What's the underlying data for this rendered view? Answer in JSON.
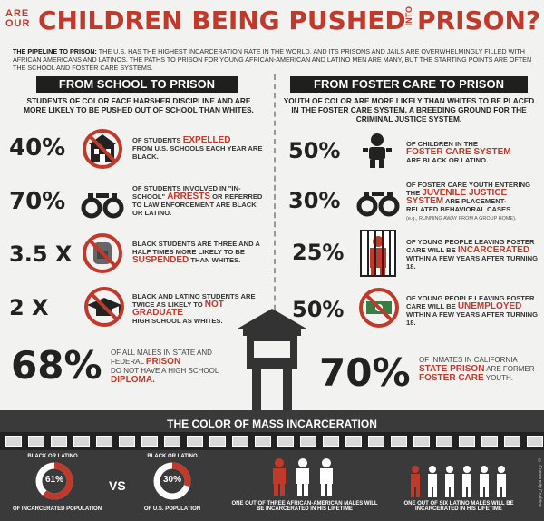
{
  "header": {
    "are_our": "ARE OUR",
    "title": "CHILDREN BEING PUSHED",
    "into": "INTO",
    "prison": "PRISON?"
  },
  "intro": {
    "lead": "THE PIPELINE TO PRISON:",
    "text": " THE U.S. HAS THE HIGHEST INCARCERATION RATE IN THE WORLD, AND ITS PRISONS AND JAILS ARE OVERWHELMINGLY FILLED WITH AFRICAN AMERICANS AND LATINOS. THE PATHS TO PRISON FOR YOUNG AFRICAN-AMERICAN AND LATINO MEN ARE MANY, BUT THE STARTING POINTS ARE OFTEN THE SCHOOL AND FOSTER CARE SYSTEMS."
  },
  "school": {
    "heading": "FROM SCHOOL TO PRISON",
    "sub": "STUDENTS OF COLOR FACE HARSHER DISCIPLINE AND ARE MORE LIKELY TO BE PUSHED OUT OF SCHOOL THAN WHITES.",
    "stats": [
      {
        "value": "40%",
        "pre": "OF STUDENTS ",
        "hl": "EXPELLED",
        "post": "FROM U.S. SCHOOLS EACH YEAR ARE BLACK.",
        "icon": "expelled-school-icon"
      },
      {
        "value": "70%",
        "pre": "OF STUDENTS INVOLVED IN \"IN-SCHOOL\" ",
        "hl": "ARRESTS",
        "post": "OR REFERRED TO LAW ENFORCEMENT ARE BLACK OR LATINO.",
        "icon": "handcuffs-icon"
      },
      {
        "value": "3.5 X",
        "pre": "BLACK STUDENTS ARE THREE AND A HALF TIMES MORE LIKELY TO BE ",
        "hl": "SUSPENDED",
        "post": "THAN WHITES.",
        "icon": "no-backpack-icon"
      },
      {
        "value": "2 X",
        "pre": "BLACK AND LATINO STUDENTS ARE TWICE AS LIKELY TO ",
        "hl": "NOT GRADUATE",
        "post": "HIGH SCHOOL AS WHITES.",
        "icon": "no-graduation-cap-icon"
      }
    ],
    "big_value": "68%",
    "big_pre": "OF ALL MALES IN STATE AND FEDERAL ",
    "big_hl1": "PRISON",
    "big_mid": "DO NOT HAVE A HIGH SCHOOL",
    "big_hl2": "DIPLOMA."
  },
  "foster": {
    "heading": "FROM FOSTER CARE TO PRISON",
    "sub": "YOUTH OF COLOR ARE MORE LIKELY THAN WHITES TO BE PLACED IN THE FOSTER CARE SYSTEM, A BREEDING GROUND FOR THE CRIMINAL JUSTICE SYSTEM.",
    "stats": [
      {
        "value": "50%",
        "pre": "OF CHILDREN IN THE ",
        "hl": "FOSTER CARE SYSTEM",
        "post": "ARE BLACK OR LATINO.",
        "note": "",
        "icon": "baby-icon"
      },
      {
        "value": "30%",
        "pre": "OF FOSTER CARE YOUTH ENTERING THE ",
        "hl": "JUVENILE JUSTICE SYSTEM",
        "post": "ARE PLACEMENT-RELATED BEHAVIORAL CASES",
        "note": "(e.g., RUNNING AWAY FROM A GROUP HOME).",
        "icon": "handcuffs-icon"
      },
      {
        "value": "25%",
        "pre": "OF YOUNG PEOPLE LEAVING FOSTER CARE WILL BE ",
        "hl": "INCARCERATED",
        "post": "WITHIN A FEW YEARS AFTER TURNING 18.",
        "note": "",
        "icon": "prisoner-bars-icon"
      },
      {
        "value": "50%",
        "pre": "OF YOUNG PEOPLE LEAVING FOSTER CARE WILL BE ",
        "hl": "UNEMPLOYED",
        "post": "WITHIN A FEW YEARS AFTER TURNING 18.",
        "note": "",
        "icon": "no-money-icon"
      }
    ],
    "big_value": "70%",
    "big_pre": "OF INMATES IN CALIFORNIA",
    "big_hl1": "STATE PRISON",
    "big_mid": "ARE FORMER",
    "big_hl2": "FOSTER CARE",
    "big_post": "YOUTH."
  },
  "bottom": {
    "title": "THE COLOR OF MASS INCARCERATION",
    "donut1": {
      "label_top": "BLACK OR LATINO",
      "value": "61%",
      "pct": 61,
      "label_bottom": "OF INCARCERATED POPULATION"
    },
    "vs": "VS",
    "donut2": {
      "label_top": "BLACK OR LATINO",
      "value": "30%",
      "pct": 30,
      "label_bottom": "OF U.S. POPULATION"
    },
    "group1": "ONE OUT OF THREE AFRICAN-AMERICAN MALES WILL BE INCARCERATED IN HIS LIFETIME",
    "group2": "ONE OUT OF SIX LATINO MALES WILL BE INCARCERATED IN HIS LIFETIME",
    "credit": "© Community Coalition"
  },
  "colors": {
    "accent": "#c0392b",
    "dark": "#1f1f1f",
    "bg": "#f2f2f0"
  }
}
